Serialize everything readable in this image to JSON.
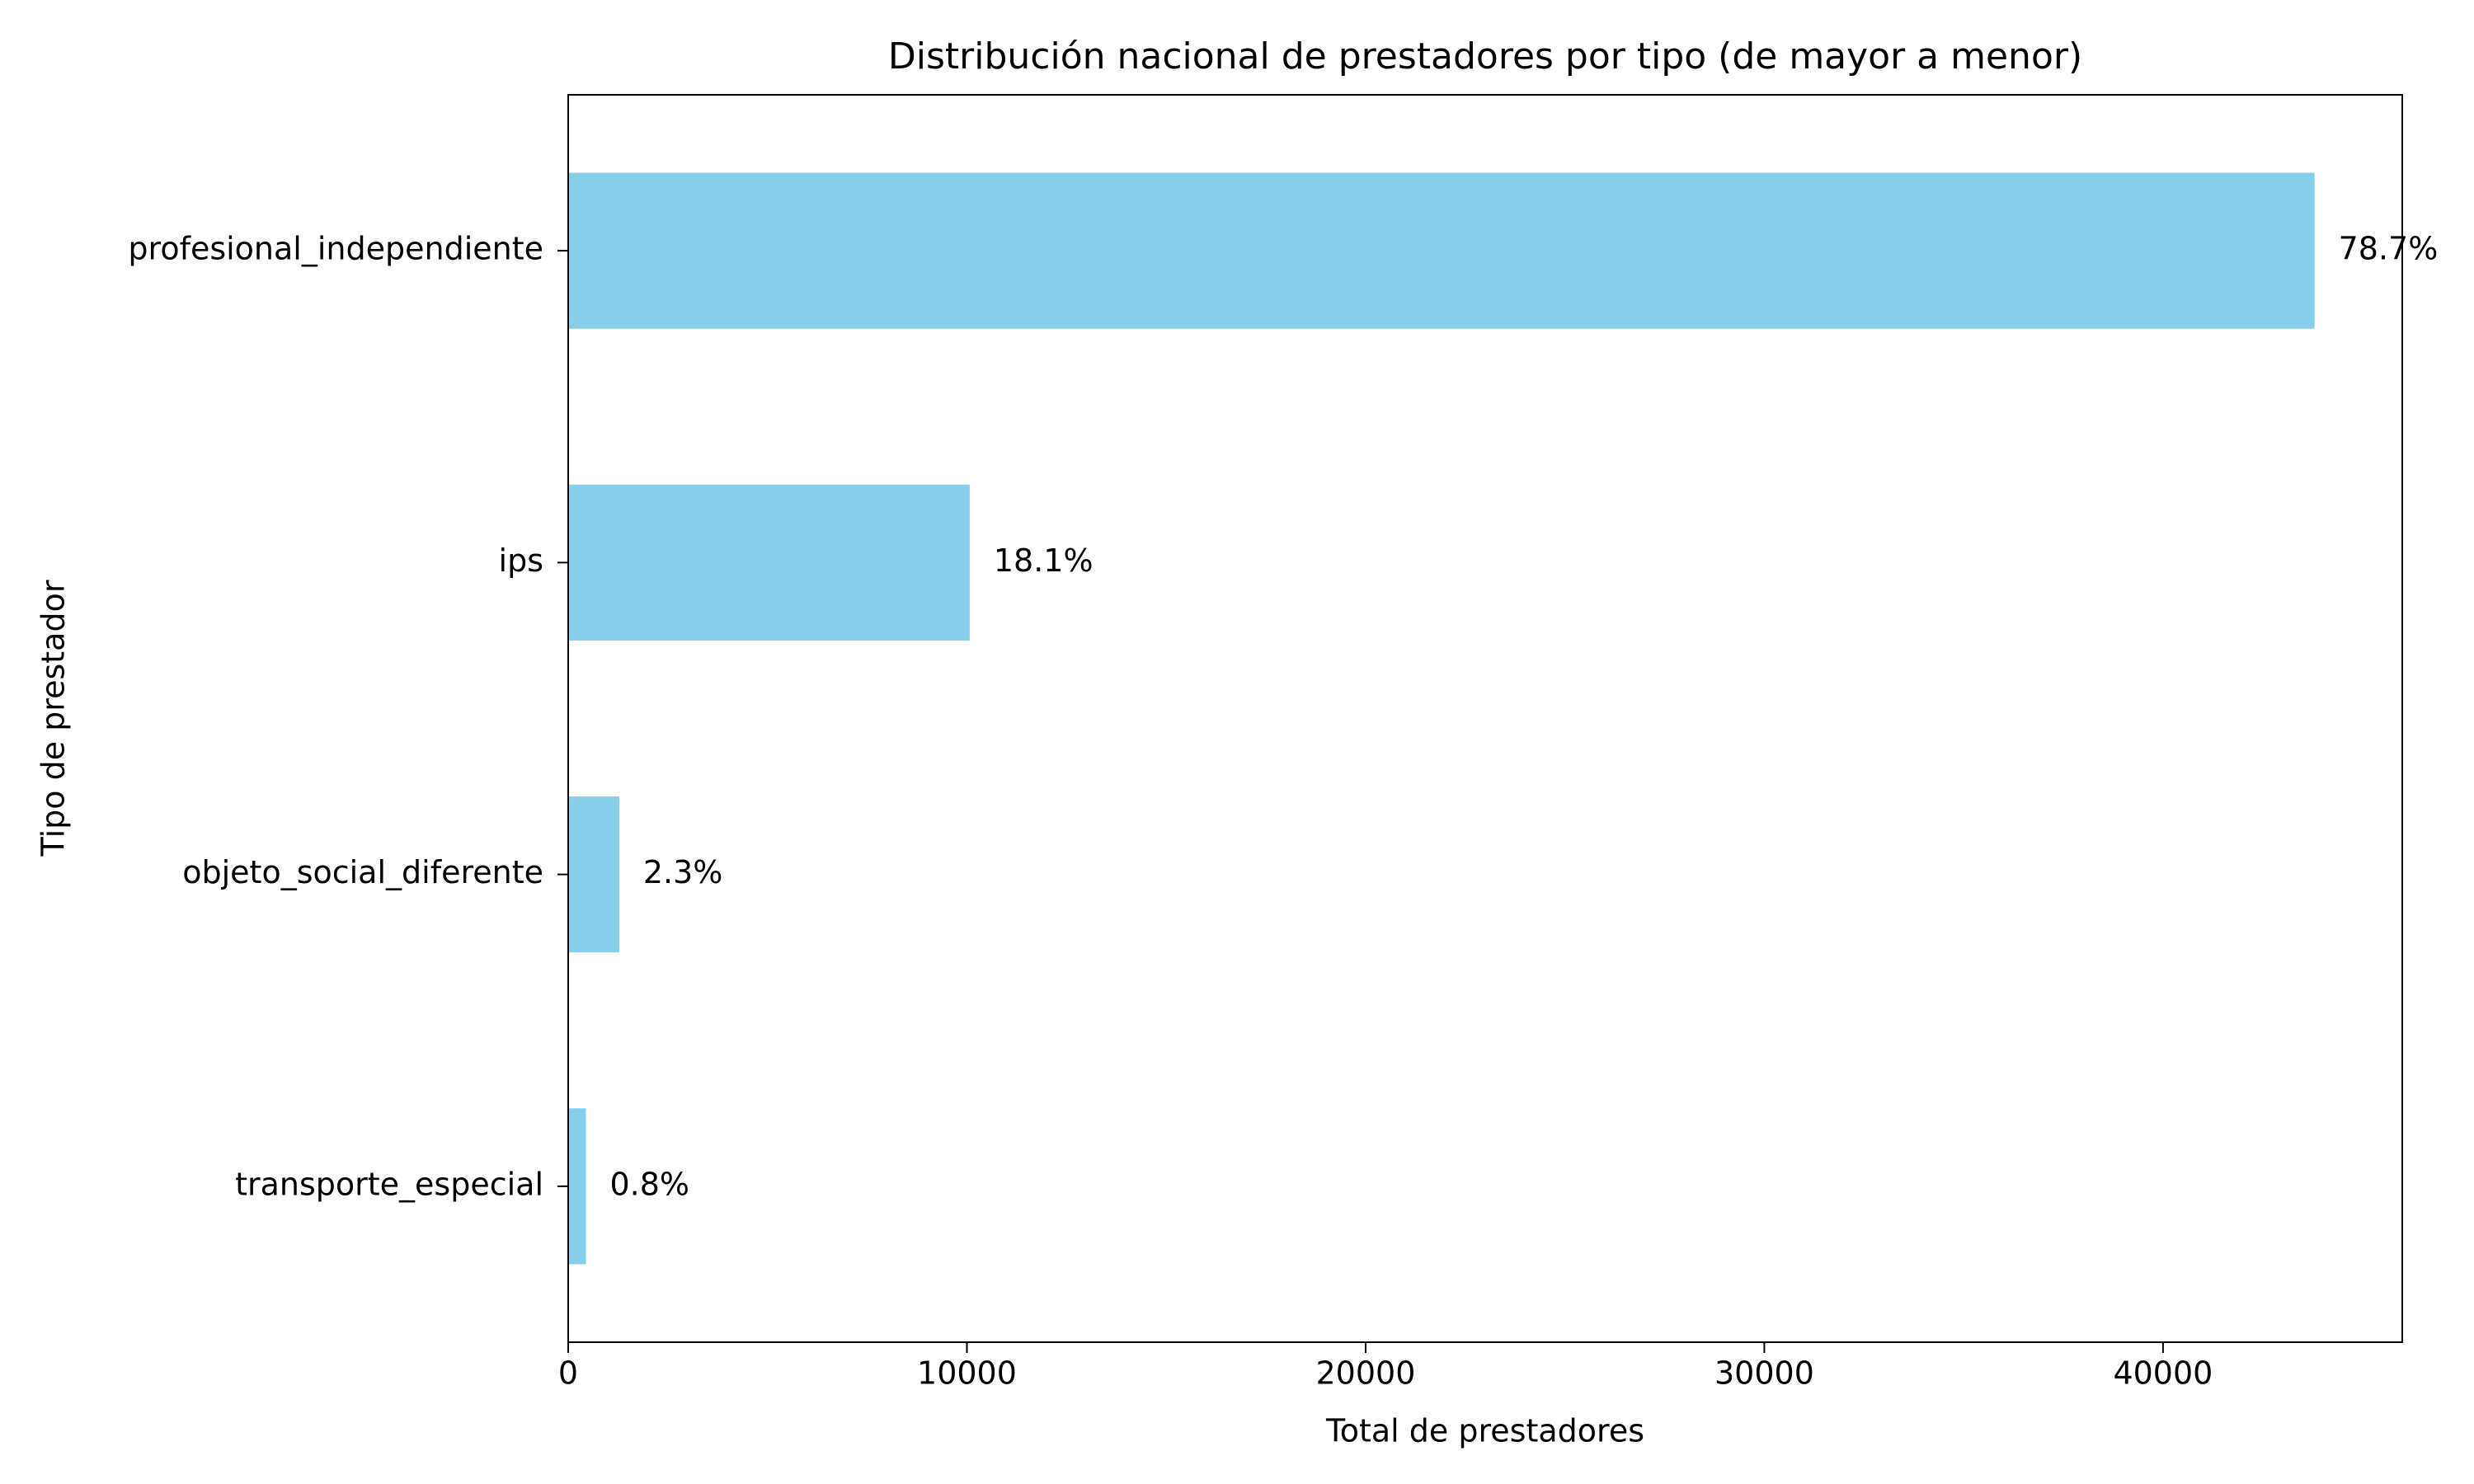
{
  "chart_data": {
    "type": "barh",
    "title": "Distribución nacional de prestadores por tipo (de mayor a menor)",
    "xlabel": "Total de prestadores",
    "ylabel": "Tipo de prestador",
    "categories": [
      "profesional_independiente",
      "ips",
      "objeto_social_diferente",
      "transporte_especial"
    ],
    "values": [
      43800,
      10070,
      1280,
      445
    ],
    "bar_labels": [
      "78.7%",
      "18.1%",
      "2.3%",
      "0.8%"
    ],
    "color": "#87ceeb",
    "xlim": [
      0,
      46000
    ],
    "xticks": [
      0,
      10000,
      20000,
      30000,
      40000
    ],
    "grid": false
  }
}
